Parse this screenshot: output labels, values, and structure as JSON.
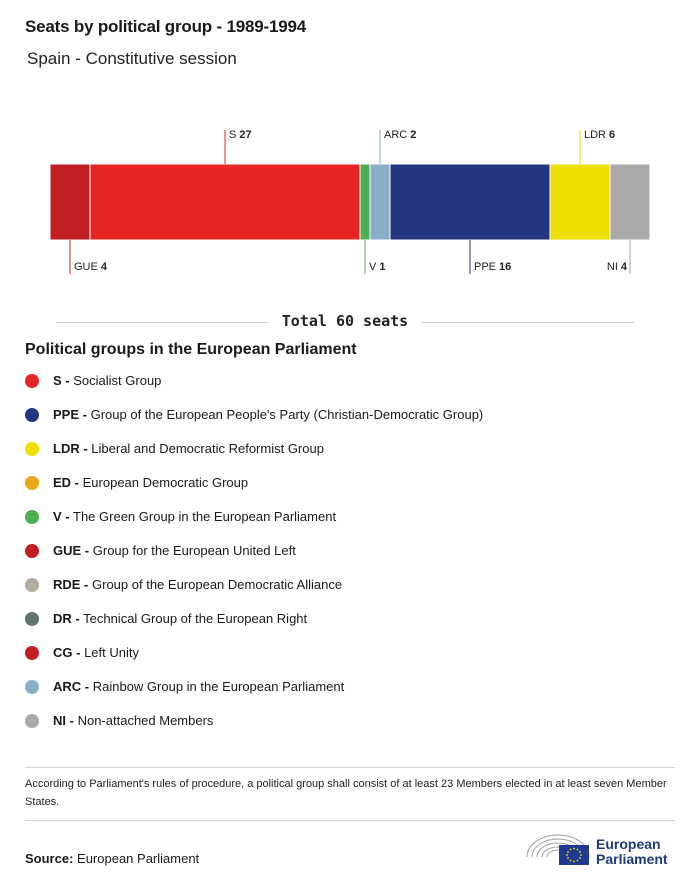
{
  "title": "Seats by political group - 1989-1994",
  "subtitle": "Spain - Constitutive session",
  "chart_data": {
    "type": "bar",
    "orientation": "horizontal-stacked",
    "categories": [
      "GUE",
      "S",
      "V",
      "ARC",
      "PPE",
      "LDR",
      "NI"
    ],
    "values": [
      4,
      27,
      1,
      2,
      16,
      6,
      4
    ],
    "colors": [
      "#c01f24",
      "#e62625",
      "#4caf50",
      "#88aec8",
      "#243680",
      "#eedf00",
      "#aaaaaa"
    ],
    "label_positions": [
      "below",
      "above",
      "below",
      "above",
      "below",
      "above",
      "below"
    ],
    "total": 60
  },
  "total_label": "Total 60 seats",
  "legend_title": "Political groups in the European Parliament",
  "legend": [
    {
      "abbr": "S -",
      "name": "Socialist Group",
      "color": "#e62625"
    },
    {
      "abbr": "PPE -",
      "name": "Group of the European People's Party (Christian-Democratic Group)",
      "color": "#243680"
    },
    {
      "abbr": "LDR -",
      "name": "Liberal and Democratic Reformist Group",
      "color": "#eedf00"
    },
    {
      "abbr": "ED -",
      "name": "European Democratic Group",
      "color": "#e8a81a"
    },
    {
      "abbr": "V -",
      "name": "The Green Group in the European Parliament",
      "color": "#4caf50"
    },
    {
      "abbr": "GUE -",
      "name": "Group for the European United Left",
      "color": "#c01f24"
    },
    {
      "abbr": "RDE -",
      "name": "Group of the European Democratic Alliance",
      "color": "#b5aa9b"
    },
    {
      "abbr": "DR -",
      "name": "Technical Group of the European Right",
      "color": "#5f7570"
    },
    {
      "abbr": "CG -",
      "name": "Left Unity",
      "color": "#c01f24"
    },
    {
      "abbr": "ARC -",
      "name": "Rainbow Group in the European Parliament",
      "color": "#88aec8"
    },
    {
      "abbr": "NI -",
      "name": "Non-attached Members",
      "color": "#aaaaaa"
    }
  ],
  "note": "According to Parliament's rules of procedure, a political group shall consist of at least 23 Members elected in at least seven Member States.",
  "source_label": "Source:",
  "source_value": "European Parliament",
  "logo": {
    "line1": "European",
    "line2": "Parliament",
    "icon": "eu-flag-hemicycle-icon"
  }
}
